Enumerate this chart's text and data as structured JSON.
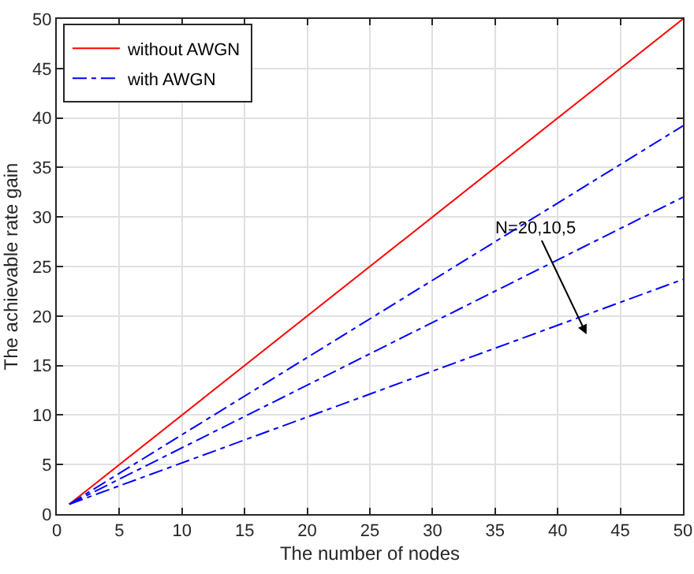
{
  "chart_data": {
    "type": "line",
    "xlabel": "The number of nodes",
    "ylabel": "The achievable rate gain",
    "x": [
      1,
      50
    ],
    "series": [
      {
        "name": "without AWGN",
        "color": "#ff0000",
        "values": [
          1,
          50
        ],
        "line_style": "solid"
      },
      {
        "name": "with AWGN",
        "color": "#0000ff",
        "values": [
          1,
          39.2
        ],
        "line_style": "dashdot"
      },
      {
        "color": "#0000ff",
        "values": [
          1,
          32.0
        ],
        "line_style": "dashdot"
      },
      {
        "color": "#0000ff",
        "values": [
          1,
          23.7
        ],
        "line_style": "dashdot"
      }
    ],
    "xlim": [
      0,
      50
    ],
    "xticks": [
      0,
      5,
      10,
      15,
      20,
      25,
      30,
      35,
      40,
      45,
      50
    ],
    "ylim": [
      0,
      50
    ],
    "yticks": [
      0,
      5,
      10,
      15,
      20,
      25,
      30,
      35,
      40,
      45,
      50
    ],
    "grid": true,
    "legend": "top left",
    "marker": "none",
    "annotations": [
      "N=20,10,5"
    ]
  }
}
